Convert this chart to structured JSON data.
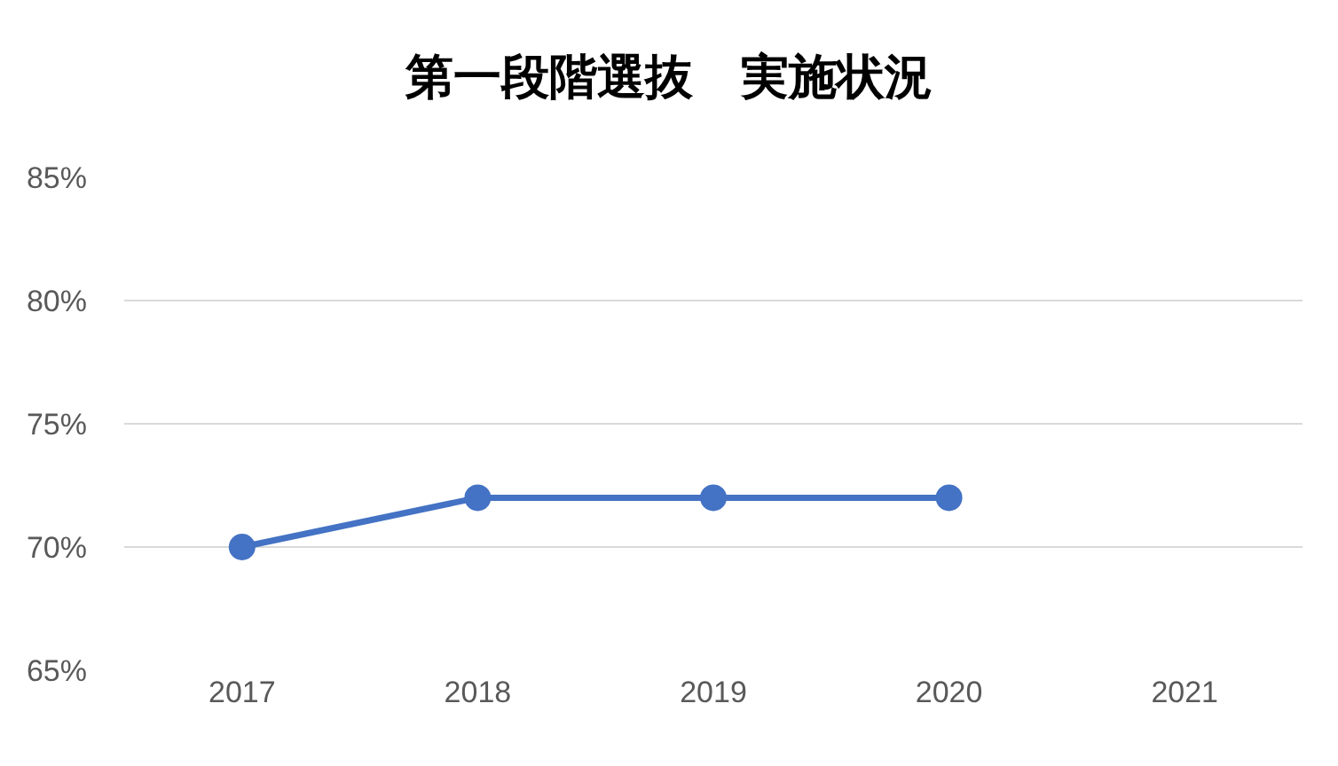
{
  "chart_data": {
    "type": "line",
    "title": "第一段階選抜　実施状況",
    "categories": [
      "2017",
      "2018",
      "2019",
      "2020",
      "2021"
    ],
    "series": [
      {
        "color": "#4472c4",
        "values": [
          70,
          72,
          72,
          72,
          null
        ]
      }
    ],
    "ylim": [
      65,
      85
    ],
    "yticks": [
      {
        "value": 65,
        "label": "65%"
      },
      {
        "value": 70,
        "label": "70%"
      },
      {
        "value": 75,
        "label": "75%"
      },
      {
        "value": 80,
        "label": "80%"
      },
      {
        "value": 85,
        "label": "85%"
      }
    ],
    "grid": "y",
    "marker": "circle",
    "line_style": "solid"
  }
}
